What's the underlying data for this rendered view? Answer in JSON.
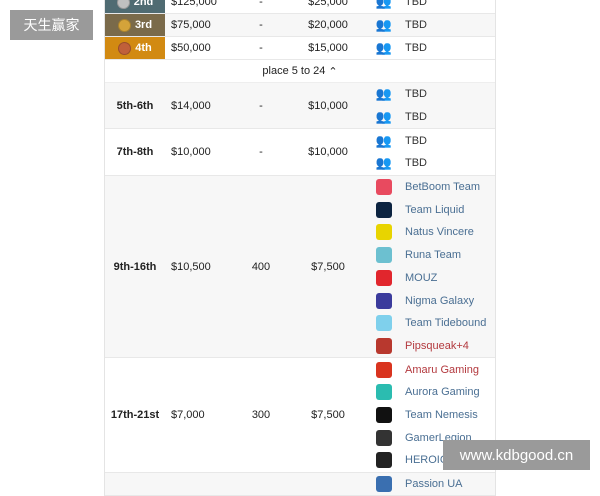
{
  "watermarks": {
    "top_left": "天生赢家",
    "bottom_right": "www.kdbgood.cn"
  },
  "expand_label": "place 5 to 24",
  "top_rows": [
    {
      "place": "2nd",
      "prize": "$125,000",
      "points": "-",
      "col3": "$25,000",
      "team": "TBD",
      "bg": "#4f6b72",
      "medal": "#c0c0c0"
    },
    {
      "place": "3rd",
      "prize": "$75,000",
      "points": "-",
      "col3": "$20,000",
      "team": "TBD",
      "bg": "#7a6a4a",
      "medal": "#d4a33a"
    },
    {
      "place": "4th",
      "prize": "$50,000",
      "points": "-",
      "col3": "$15,000",
      "team": "TBD",
      "bg": "#d28a12",
      "medal": "#c0603a"
    }
  ],
  "groups": [
    {
      "place": "5th-6th",
      "prize": "$14,000",
      "points": "-",
      "col3": "$10,000",
      "teams": [
        {
          "name": "TBD",
          "icon": "users-icon"
        },
        {
          "name": "TBD",
          "icon": "users-icon"
        }
      ]
    },
    {
      "place": "7th-8th",
      "prize": "$10,000",
      "points": "-",
      "col3": "$10,000",
      "teams": [
        {
          "name": "TBD",
          "icon": "users-icon"
        },
        {
          "name": "TBD",
          "icon": "users-icon"
        }
      ]
    },
    {
      "place": "9th-16th",
      "prize": "$10,500",
      "points": "400",
      "col3": "$7,500",
      "teams": [
        {
          "name": "BetBoom Team",
          "icon": "betboom-logo",
          "color": "#e84a5f"
        },
        {
          "name": "Team Liquid",
          "icon": "liquid-logo",
          "color": "#0c2340"
        },
        {
          "name": "Natus Vincere",
          "icon": "navi-logo",
          "color": "#e8d400"
        },
        {
          "name": "Runa Team",
          "icon": "runa-logo",
          "color": "#6cc0d0"
        },
        {
          "name": "MOUZ",
          "icon": "mouz-logo",
          "color": "#e1262d"
        },
        {
          "name": "Nigma Galaxy",
          "icon": "nigma-logo",
          "color": "#3b3b9c"
        },
        {
          "name": "Team Tidebound",
          "icon": "tidebound-logo",
          "color": "#7fd0ec"
        },
        {
          "name": "Pipsqueak+4",
          "icon": "dota-logo",
          "color": "#b8382e",
          "red": true
        }
      ]
    },
    {
      "place": "17th-21st",
      "prize": "$7,000",
      "points": "300",
      "col3": "$7,500",
      "teams": [
        {
          "name": "Amaru Gaming",
          "icon": "amaru-logo",
          "color": "#d9341f",
          "red": true
        },
        {
          "name": "Aurora Gaming",
          "icon": "aurora-logo",
          "color": "#2bbcb0"
        },
        {
          "name": "Team Nemesis",
          "icon": "nemesis-logo",
          "color": "#111111"
        },
        {
          "name": "GamerLegion",
          "icon": "gamerlegion-logo",
          "color": "#333333"
        },
        {
          "name": "HEROIC",
          "icon": "heroic-logo",
          "color": "#222222"
        }
      ]
    },
    {
      "place": "",
      "prize": "",
      "points": "",
      "col3": "",
      "teams": [
        {
          "name": "Passion UA",
          "icon": "passion-logo",
          "color": "#3a6fb0"
        }
      ]
    }
  ]
}
